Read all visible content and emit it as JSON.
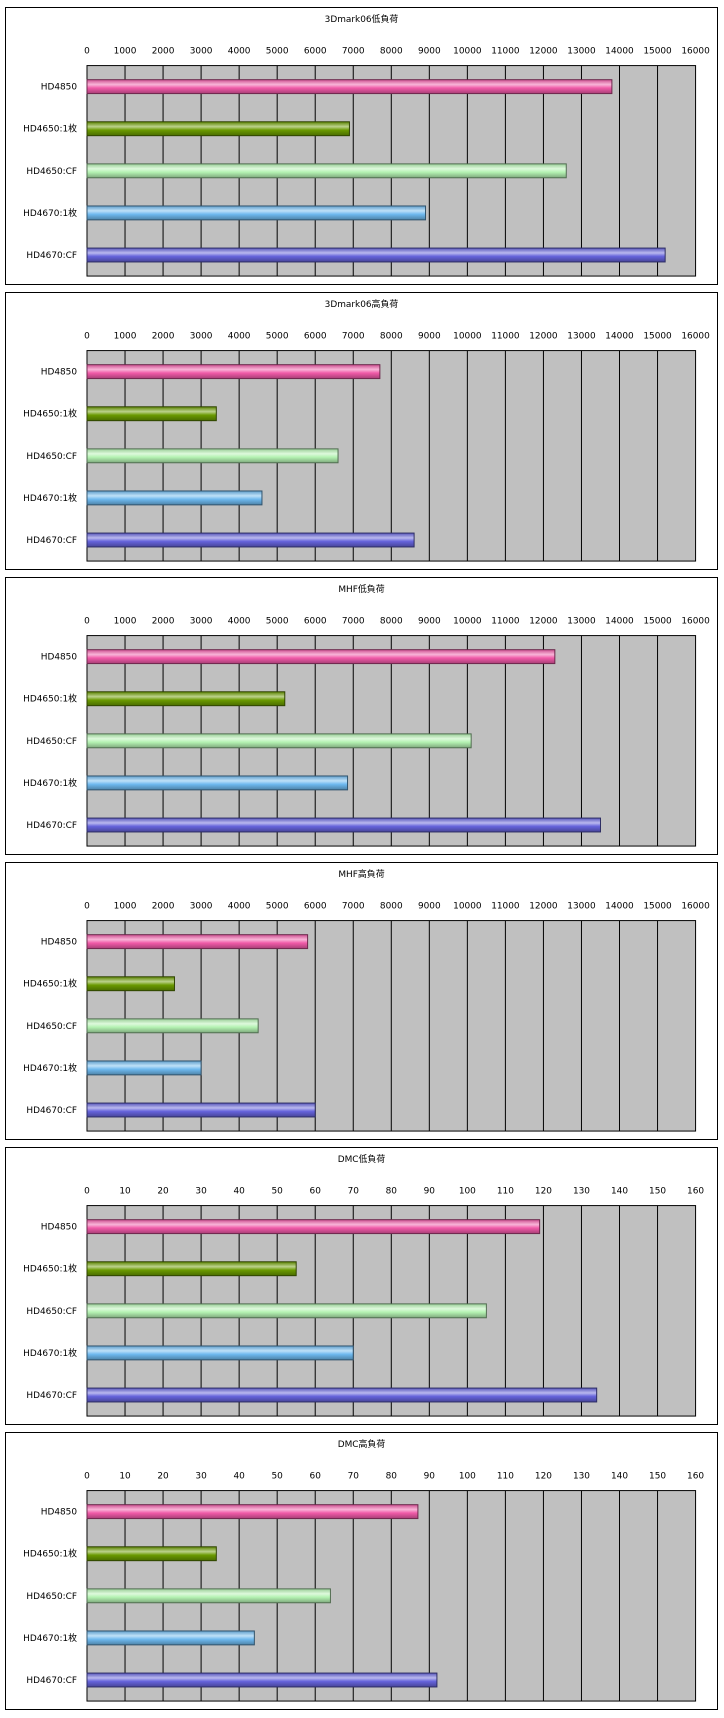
{
  "colors": {
    "plot_background": "#c0c0c0",
    "grid": "#000000",
    "border": "#000000",
    "bar_colors": [
      "#f05aa8",
      "#6a9a00",
      "#b4f2b2",
      "#6eb9ef",
      "#6563db"
    ]
  },
  "chart_data": [
    {
      "type": "bar",
      "orientation": "horizontal",
      "title": "3Dmark06低負荷",
      "categories": [
        "HD4850",
        "HD4650:1枚",
        "HD4650:CF",
        "HD4670:1枚",
        "HD4670:CF"
      ],
      "values": [
        13800,
        6900,
        12600,
        8900,
        15200
      ],
      "xlim": [
        0,
        16000
      ],
      "xticks": [
        0,
        1000,
        2000,
        3000,
        4000,
        5000,
        6000,
        7000,
        8000,
        9000,
        10000,
        11000,
        12000,
        13000,
        14000,
        15000,
        16000
      ],
      "grid": true,
      "axis_position": "top"
    },
    {
      "type": "bar",
      "orientation": "horizontal",
      "title": "3Dmark06高負荷",
      "categories": [
        "HD4850",
        "HD4650:1枚",
        "HD4650:CF",
        "HD4670:1枚",
        "HD4670:CF"
      ],
      "values": [
        7700,
        3400,
        6600,
        4600,
        8600
      ],
      "xlim": [
        0,
        16000
      ],
      "xticks": [
        0,
        1000,
        2000,
        3000,
        4000,
        5000,
        6000,
        7000,
        8000,
        9000,
        10000,
        11000,
        12000,
        13000,
        14000,
        15000,
        16000
      ],
      "grid": true,
      "axis_position": "top"
    },
    {
      "type": "bar",
      "orientation": "horizontal",
      "title": "MHF低負荷",
      "categories": [
        "HD4850",
        "HD4650:1枚",
        "HD4650:CF",
        "HD4670:1枚",
        "HD4670:CF"
      ],
      "values": [
        12300,
        5200,
        10100,
        6850,
        13500
      ],
      "xlim": [
        0,
        16000
      ],
      "xticks": [
        0,
        1000,
        2000,
        3000,
        4000,
        5000,
        6000,
        7000,
        8000,
        9000,
        10000,
        11000,
        12000,
        13000,
        14000,
        15000,
        16000
      ],
      "grid": true,
      "axis_position": "top"
    },
    {
      "type": "bar",
      "orientation": "horizontal",
      "title": "MHF高負荷",
      "categories": [
        "HD4850",
        "HD4650:1枚",
        "HD4650:CF",
        "HD4670:1枚",
        "HD4670:CF"
      ],
      "values": [
        5800,
        2300,
        4500,
        3000,
        6000
      ],
      "xlim": [
        0,
        16000
      ],
      "xticks": [
        0,
        1000,
        2000,
        3000,
        4000,
        5000,
        6000,
        7000,
        8000,
        9000,
        10000,
        11000,
        12000,
        13000,
        14000,
        15000,
        16000
      ],
      "grid": true,
      "axis_position": "top"
    },
    {
      "type": "bar",
      "orientation": "horizontal",
      "title": "DMC低負荷",
      "categories": [
        "HD4850",
        "HD4650:1枚",
        "HD4650:CF",
        "HD4670:1枚",
        "HD4670:CF"
      ],
      "values": [
        119,
        55,
        105,
        70,
        134
      ],
      "xlim": [
        0,
        160
      ],
      "xticks": [
        0,
        10,
        20,
        30,
        40,
        50,
        60,
        70,
        80,
        90,
        100,
        110,
        120,
        130,
        140,
        150,
        160
      ],
      "grid": true,
      "axis_position": "top"
    },
    {
      "type": "bar",
      "orientation": "horizontal",
      "title": "DMC高負荷",
      "categories": [
        "HD4850",
        "HD4650:1枚",
        "HD4650:CF",
        "HD4670:1枚",
        "HD4670:CF"
      ],
      "values": [
        87,
        34,
        64,
        44,
        92
      ],
      "xlim": [
        0,
        160
      ],
      "xticks": [
        0,
        10,
        20,
        30,
        40,
        50,
        60,
        70,
        80,
        90,
        100,
        110,
        120,
        130,
        140,
        150,
        160
      ],
      "grid": true,
      "axis_position": "top"
    }
  ]
}
